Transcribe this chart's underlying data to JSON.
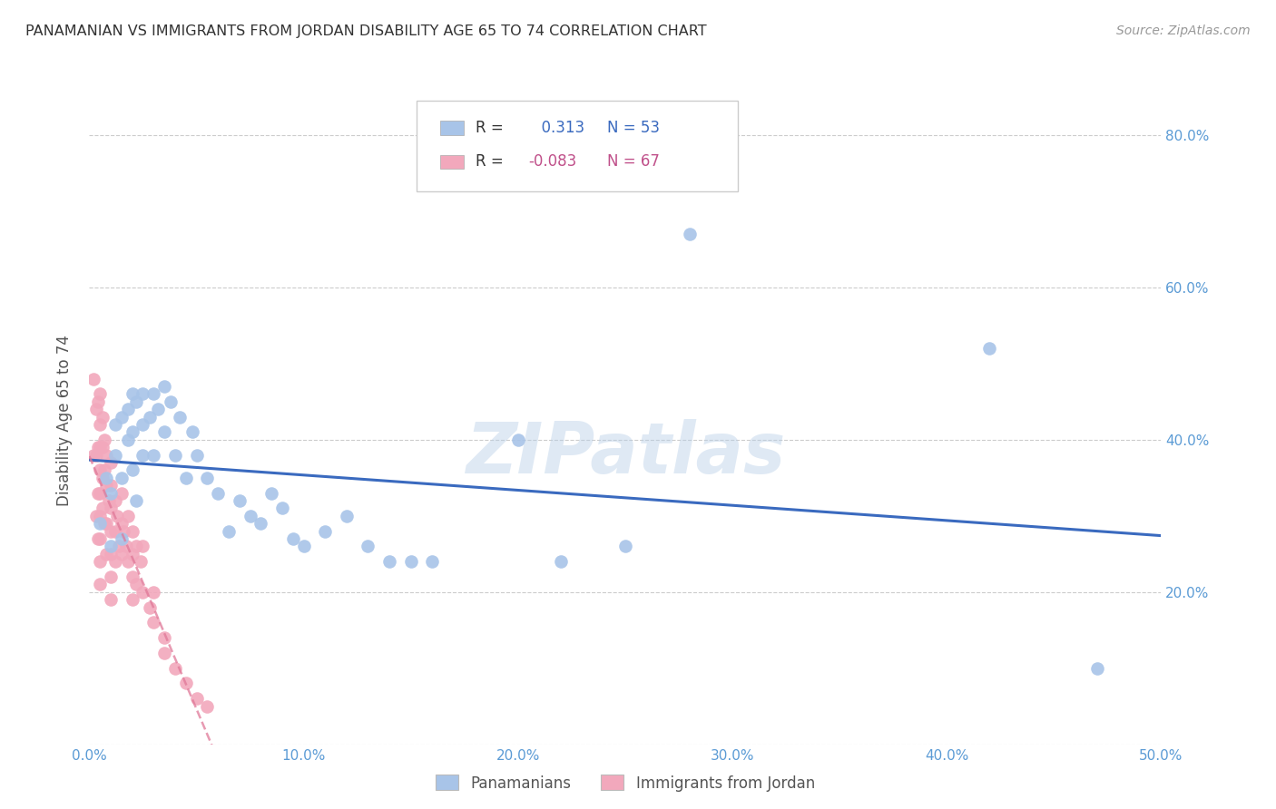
{
  "title": "PANAMANIAN VS IMMIGRANTS FROM JORDAN DISABILITY AGE 65 TO 74 CORRELATION CHART",
  "source": "Source: ZipAtlas.com",
  "ylabel": "Disability Age 65 to 74",
  "xlim": [
    0.0,
    0.5
  ],
  "ylim": [
    0.0,
    0.85
  ],
  "x_ticks": [
    0.0,
    0.1,
    0.2,
    0.3,
    0.4,
    0.5
  ],
  "x_tick_labels": [
    "0.0%",
    "10.0%",
    "20.0%",
    "30.0%",
    "40.0%",
    "50.0%"
  ],
  "y_ticks": [
    0.0,
    0.2,
    0.4,
    0.6,
    0.8
  ],
  "y_tick_labels_right": [
    "",
    "20.0%",
    "40.0%",
    "60.0%",
    "80.0%"
  ],
  "blue_R": 0.313,
  "blue_N": 53,
  "pink_R": -0.083,
  "pink_N": 67,
  "blue_color": "#a8c4e8",
  "pink_color": "#f2a8bc",
  "blue_line_color": "#3a6abf",
  "pink_line_color": "#e07898",
  "watermark": "ZIPatlas",
  "blue_x": [
    0.005,
    0.008,
    0.01,
    0.01,
    0.012,
    0.012,
    0.015,
    0.015,
    0.015,
    0.018,
    0.018,
    0.02,
    0.02,
    0.02,
    0.022,
    0.022,
    0.025,
    0.025,
    0.025,
    0.028,
    0.03,
    0.03,
    0.032,
    0.035,
    0.035,
    0.038,
    0.04,
    0.042,
    0.045,
    0.048,
    0.05,
    0.055,
    0.06,
    0.065,
    0.07,
    0.075,
    0.08,
    0.085,
    0.09,
    0.095,
    0.1,
    0.11,
    0.12,
    0.13,
    0.14,
    0.15,
    0.16,
    0.2,
    0.22,
    0.25,
    0.28,
    0.42,
    0.47
  ],
  "blue_y": [
    0.29,
    0.35,
    0.33,
    0.26,
    0.42,
    0.38,
    0.43,
    0.35,
    0.27,
    0.44,
    0.4,
    0.46,
    0.41,
    0.36,
    0.45,
    0.32,
    0.46,
    0.42,
    0.38,
    0.43,
    0.46,
    0.38,
    0.44,
    0.47,
    0.41,
    0.45,
    0.38,
    0.43,
    0.35,
    0.41,
    0.38,
    0.35,
    0.33,
    0.28,
    0.32,
    0.3,
    0.29,
    0.33,
    0.31,
    0.27,
    0.26,
    0.28,
    0.3,
    0.26,
    0.24,
    0.24,
    0.24,
    0.4,
    0.24,
    0.26,
    0.67,
    0.52,
    0.1
  ],
  "pink_x": [
    0.002,
    0.002,
    0.003,
    0.003,
    0.003,
    0.004,
    0.004,
    0.004,
    0.004,
    0.005,
    0.005,
    0.005,
    0.005,
    0.005,
    0.005,
    0.005,
    0.005,
    0.005,
    0.006,
    0.006,
    0.006,
    0.006,
    0.007,
    0.007,
    0.007,
    0.008,
    0.008,
    0.008,
    0.008,
    0.009,
    0.01,
    0.01,
    0.01,
    0.01,
    0.01,
    0.01,
    0.01,
    0.012,
    0.012,
    0.012,
    0.013,
    0.014,
    0.015,
    0.015,
    0.015,
    0.016,
    0.017,
    0.018,
    0.018,
    0.02,
    0.02,
    0.02,
    0.02,
    0.022,
    0.022,
    0.024,
    0.025,
    0.025,
    0.028,
    0.03,
    0.03,
    0.035,
    0.035,
    0.04,
    0.045,
    0.05,
    0.055
  ],
  "pink_y": [
    0.48,
    0.38,
    0.44,
    0.38,
    0.3,
    0.45,
    0.39,
    0.33,
    0.27,
    0.46,
    0.42,
    0.39,
    0.36,
    0.33,
    0.3,
    0.27,
    0.24,
    0.21,
    0.43,
    0.39,
    0.35,
    0.31,
    0.4,
    0.36,
    0.29,
    0.38,
    0.34,
    0.29,
    0.25,
    0.32,
    0.37,
    0.34,
    0.31,
    0.28,
    0.25,
    0.22,
    0.19,
    0.32,
    0.28,
    0.24,
    0.3,
    0.26,
    0.33,
    0.29,
    0.25,
    0.28,
    0.26,
    0.3,
    0.24,
    0.28,
    0.25,
    0.22,
    0.19,
    0.26,
    0.21,
    0.24,
    0.26,
    0.2,
    0.18,
    0.2,
    0.16,
    0.14,
    0.12,
    0.1,
    0.08,
    0.06,
    0.05
  ]
}
